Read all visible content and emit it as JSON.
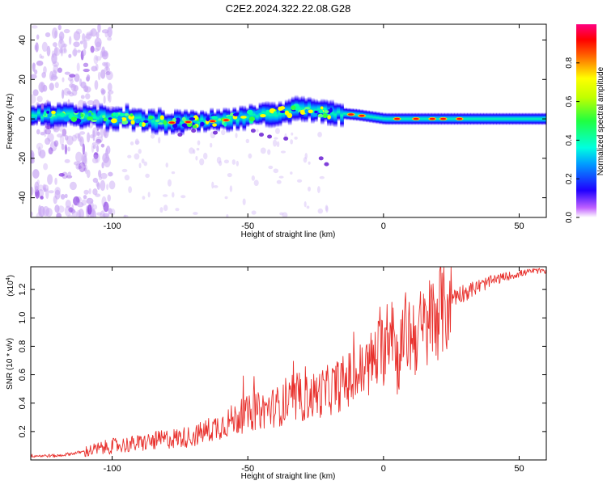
{
  "title": "C2E2.2024.322.22.08.G28",
  "chart_data": [
    {
      "type": "heatmap",
      "xlabel": "Height of straight line (km)",
      "ylabel": "Frequency (Hz)",
      "xlim": [
        -130,
        60
      ],
      "ylim": [
        -50,
        48
      ],
      "xticks": [
        -100,
        -50,
        0,
        50
      ],
      "yticks": [
        -40,
        -20,
        0,
        20,
        40
      ],
      "colorbar": {
        "label": "Normalized spectral amplitude",
        "range": [
          0,
          1
        ],
        "ticks": [
          0.0,
          0.2,
          0.4,
          0.6,
          0.8
        ]
      },
      "center_frequency_trend": [
        {
          "x": -130,
          "y": 2
        },
        {
          "x": -100,
          "y": 1
        },
        {
          "x": -80,
          "y": -2
        },
        {
          "x": -60,
          "y": -1
        },
        {
          "x": -45,
          "y": 2
        },
        {
          "x": -30,
          "y": 5
        },
        {
          "x": -18,
          "y": 3
        },
        {
          "x": -10,
          "y": 2
        },
        {
          "x": 0,
          "y": 0
        },
        {
          "x": 20,
          "y": 0
        },
        {
          "x": 60,
          "y": 0
        }
      ],
      "strong_peaks_x": [
        -12,
        -8,
        5,
        12,
        18,
        22,
        28
      ]
    },
    {
      "type": "line",
      "xlabel": "Height of straight line (km)",
      "ylabel": "SNR (10 * v/v)",
      "y_multiplier": "(x10",
      "y_multiplier_exponent": "4",
      "y_multiplier_close": ")",
      "xlim": [
        -130,
        60
      ],
      "ylim": [
        0,
        1.36
      ],
      "xticks": [
        -100,
        -50,
        0,
        50
      ],
      "yticks": [
        0.2,
        0.4,
        0.6,
        0.8,
        1.0,
        1.2
      ],
      "color": "#e8302c",
      "series": [
        {
          "name": "SNR",
          "x": [
            -130,
            -120,
            -110,
            -100,
            -90,
            -80,
            -70,
            -60,
            -50,
            -40,
            -30,
            -20,
            -15,
            -10,
            -5,
            0,
            3,
            5,
            8,
            12,
            15,
            20,
            25,
            30,
            35,
            40,
            45,
            50,
            55,
            60
          ],
          "y": [
            0.03,
            0.03,
            0.06,
            0.1,
            0.12,
            0.15,
            0.17,
            0.25,
            0.33,
            0.38,
            0.43,
            0.5,
            0.55,
            0.6,
            0.68,
            0.8,
            1.05,
            0.7,
            0.9,
            0.9,
            0.93,
            1.08,
            1.15,
            1.18,
            1.22,
            1.26,
            1.29,
            1.31,
            1.33,
            1.33
          ]
        }
      ]
    }
  ]
}
